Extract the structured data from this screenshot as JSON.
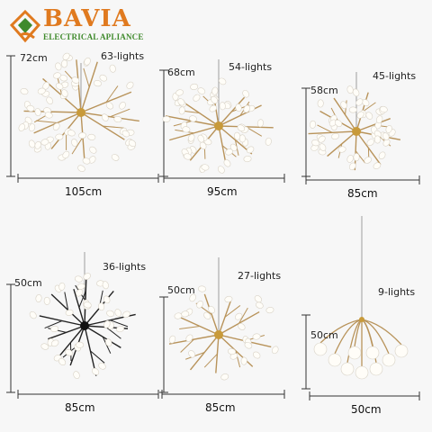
{
  "brand": {
    "name": "BAVIA",
    "tagline": "ELECTRICAL APLIANCE",
    "colors": {
      "orange": "#e07a1f",
      "green": "#3f8a2c"
    }
  },
  "products": [
    {
      "height": "72cm",
      "lights": "63-lights",
      "width": "105cm",
      "finish": "gold"
    },
    {
      "height": "68cm",
      "lights": "54-lights",
      "width": "95cm",
      "finish": "gold"
    },
    {
      "height": "58cm",
      "lights": "45-lights",
      "width": "85cm",
      "finish": "gold"
    },
    {
      "height": "50cm",
      "lights": "36-lights",
      "width": "85cm",
      "finish": "black"
    },
    {
      "height": "50cm",
      "lights": "27-lights",
      "width": "85cm",
      "finish": "gold"
    },
    {
      "height": "50cm",
      "lights": "9-lights",
      "width": "50cm",
      "finish": "gold"
    }
  ]
}
